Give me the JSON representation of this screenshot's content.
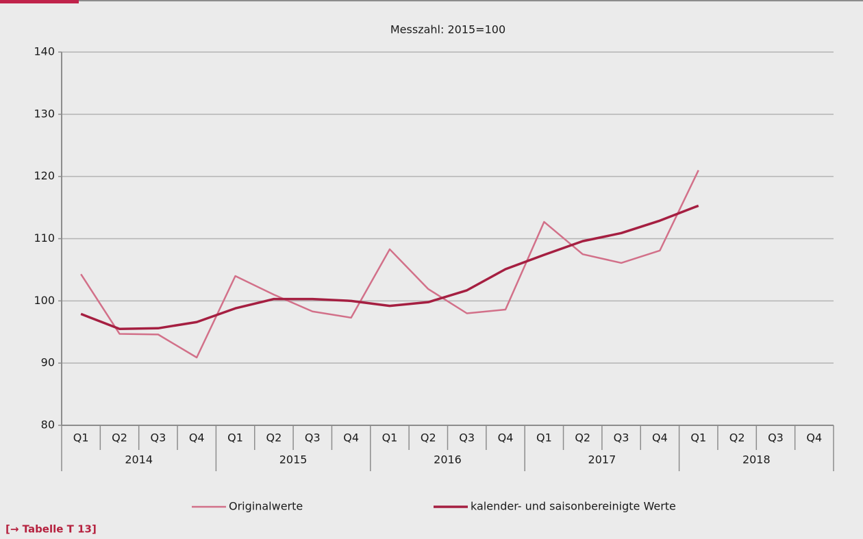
{
  "chart_data": {
    "type": "line",
    "subtitle": "Messzahl: 2015=100",
    "categories": [
      "Q1",
      "Q2",
      "Q3",
      "Q4",
      "Q1",
      "Q2",
      "Q3",
      "Q4",
      "Q1",
      "Q2",
      "Q3",
      "Q4",
      "Q1",
      "Q2",
      "Q3",
      "Q4",
      "Q1",
      "Q2",
      "Q3",
      "Q4"
    ],
    "category_groups": [
      "2014",
      "2015",
      "2016",
      "2017",
      "2018"
    ],
    "series": [
      {
        "name": "Originalwerte",
        "color": "#d27089",
        "values": [
          104.3,
          94.7,
          94.6,
          90.9,
          104.0,
          101.0,
          98.3,
          97.3,
          108.3,
          101.9,
          98.0,
          98.6,
          112.7,
          107.5,
          106.1,
          108.1,
          121.0,
          null,
          null,
          null
        ]
      },
      {
        "name": "kalender- und saisonbereinigte Werte",
        "color": "#a51f41",
        "values": [
          97.9,
          95.5,
          95.6,
          96.6,
          98.8,
          100.3,
          100.3,
          100.0,
          99.2,
          99.8,
          101.7,
          105.1,
          107.4,
          109.6,
          110.9,
          112.9,
          115.3,
          null,
          null,
          null
        ]
      }
    ],
    "ylim": [
      80,
      140
    ],
    "yticks": [
      80,
      90,
      100,
      110,
      120,
      130,
      140
    ],
    "grid": true,
    "footer_link": "[→ Tabelle T 13]"
  }
}
